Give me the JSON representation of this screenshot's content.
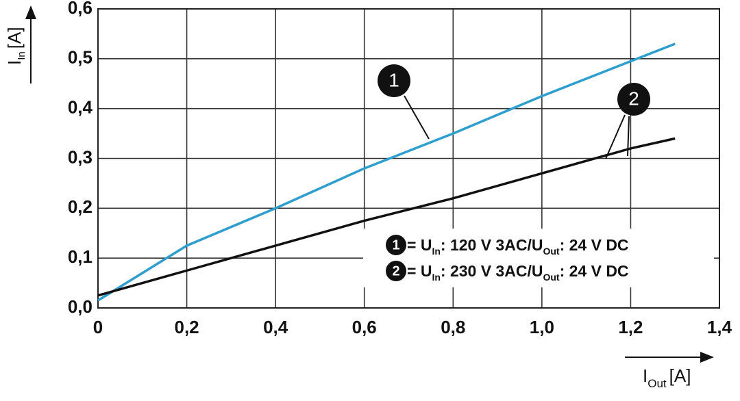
{
  "chart_data": {
    "type": "line",
    "ylabel": {
      "symbol": "I",
      "subscript": "In",
      "unit": "[A]"
    },
    "xlabel": {
      "symbol": "I",
      "subscript": "Out",
      "unit": "[A]"
    },
    "xlim": [
      0,
      1.4
    ],
    "ylim": [
      0,
      0.6
    ],
    "xticks": [
      0,
      {
        "value": 0.2,
        "label": "0,2"
      },
      {
        "value": 0.4,
        "label": "0,4"
      },
      {
        "value": 0.6,
        "label": "0,6"
      },
      {
        "value": 0.8,
        "label": "0,8"
      },
      {
        "value": 1.0,
        "label": "1,0"
      },
      {
        "value": 1.2,
        "label": "1,2"
      },
      {
        "value": 1.4,
        "label": "1,4"
      }
    ],
    "yticks": [
      {
        "value": 0,
        "label": "0,0"
      },
      {
        "value": 0.1,
        "label": "0,1"
      },
      {
        "value": 0.2,
        "label": "0,2"
      },
      {
        "value": 0.3,
        "label": "0,3"
      },
      {
        "value": 0.4,
        "label": "0,4"
      },
      {
        "value": 0.5,
        "label": "0,5"
      },
      {
        "value": 0.6,
        "label": "0,6"
      }
    ],
    "grid": true,
    "legend": "lower right",
    "series": [
      {
        "name": "1",
        "color": "#2a9fd0",
        "description": [
          "= U",
          "In",
          ": 120 V 3AC/U",
          "Out",
          ": 24 V DC"
        ],
        "x": [
          0,
          0.1,
          0.2,
          0.4,
          0.6,
          0.8,
          1.0,
          1.2,
          1.3
        ],
        "values": [
          0.015,
          0.07,
          0.125,
          0.2,
          0.28,
          0.35,
          0.425,
          0.495,
          0.53
        ]
      },
      {
        "name": "2",
        "color": "#111111",
        "description": [
          "= U",
          "In",
          ": 230 V 3AC/U",
          "Out",
          ": 24 V DC"
        ],
        "x": [
          0,
          0.2,
          0.4,
          0.6,
          0.8,
          1.0,
          1.2,
          1.3
        ],
        "values": [
          0.025,
          0.075,
          0.125,
          0.175,
          0.22,
          0.27,
          0.32,
          0.34
        ]
      }
    ]
  }
}
